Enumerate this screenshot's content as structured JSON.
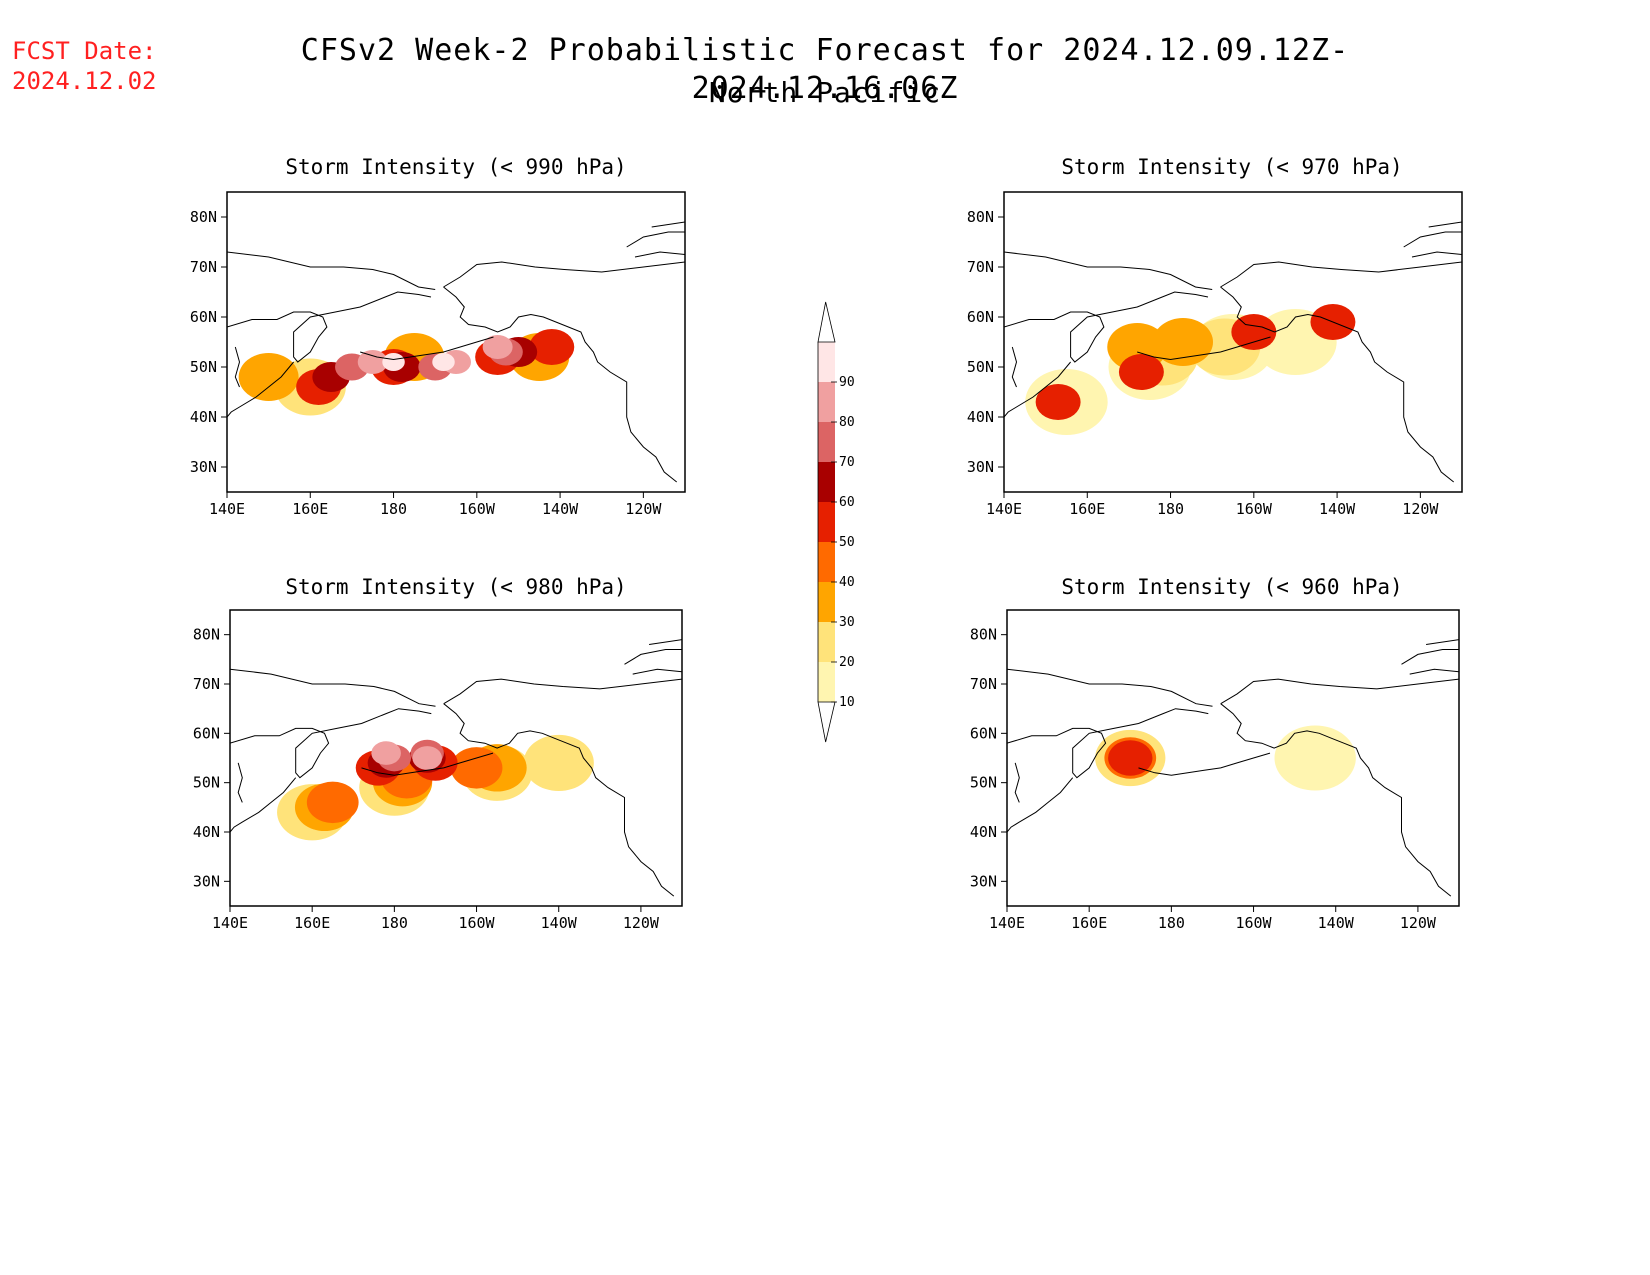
{
  "fcst": {
    "label": "FCST Date:",
    "date": "2024.12.02"
  },
  "title": "CFSv2 Week-2 Probabilistic Forecast for 2024.12.09.12Z-2024.12.16.06Z",
  "subtitle": "North Pacific",
  "colors": {
    "10": "#fff5b0",
    "20": "#ffe37a",
    "30": "#ffa500",
    "40": "#ff6a00",
    "50": "#e62000",
    "60": "#a80000",
    "70": "#dc6464",
    "80": "#f0a0a0",
    "90": "#ffe6e6"
  },
  "colorbar": {
    "levels": [
      "10",
      "20",
      "30",
      "40",
      "50",
      "60",
      "70",
      "80",
      "90"
    ]
  },
  "axes": {
    "x_ticks": [
      "140E",
      "160E",
      "180",
      "160W",
      "140W",
      "120W"
    ],
    "y_ticks": [
      "80N",
      "70N",
      "60N",
      "50N",
      "40N",
      "30N"
    ]
  },
  "panels": [
    {
      "id": "p990",
      "title": "Storm Intensity (< 990 hPa)",
      "blobs": [
        {
          "lon": 160,
          "lat": 46,
          "level": 20
        },
        {
          "lon": 150,
          "lat": 48,
          "level": 30
        },
        {
          "lon": 185,
          "lat": 52,
          "level": 30
        },
        {
          "lon": 215,
          "lat": 52,
          "level": 30
        },
        {
          "lon": 162,
          "lat": 46,
          "level": 50
        },
        {
          "lon": 180,
          "lat": 50,
          "level": 50
        },
        {
          "lon": 205,
          "lat": 52,
          "level": 50
        },
        {
          "lon": 218,
          "lat": 54,
          "level": 50
        },
        {
          "lon": 165,
          "lat": 48,
          "level": 60
        },
        {
          "lon": 182,
          "lat": 50,
          "level": 60
        },
        {
          "lon": 210,
          "lat": 53,
          "level": 60
        },
        {
          "lon": 170,
          "lat": 50,
          "level": 70
        },
        {
          "lon": 190,
          "lat": 50,
          "level": 70
        },
        {
          "lon": 207,
          "lat": 53,
          "level": 70
        },
        {
          "lon": 175,
          "lat": 51,
          "level": 80
        },
        {
          "lon": 195,
          "lat": 51,
          "level": 80
        },
        {
          "lon": 205,
          "lat": 54,
          "level": 80
        },
        {
          "lon": 180,
          "lat": 51,
          "level": 90
        },
        {
          "lon": 192,
          "lat": 51,
          "level": 90
        }
      ]
    },
    {
      "id": "p970",
      "title": "Storm Intensity (< 970 hPa)",
      "blobs": [
        {
          "lon": 155,
          "lat": 43,
          "level": 10
        },
        {
          "lon": 175,
          "lat": 50,
          "level": 10
        },
        {
          "lon": 195,
          "lat": 54,
          "level": 10
        },
        {
          "lon": 210,
          "lat": 55,
          "level": 10
        },
        {
          "lon": 178,
          "lat": 52,
          "level": 20
        },
        {
          "lon": 193,
          "lat": 54,
          "level": 20
        },
        {
          "lon": 172,
          "lat": 54,
          "level": 30
        },
        {
          "lon": 183,
          "lat": 55,
          "level": 30
        },
        {
          "lon": 153,
          "lat": 43,
          "level": 50
        },
        {
          "lon": 173,
          "lat": 49,
          "level": 50
        },
        {
          "lon": 200,
          "lat": 57,
          "level": 50
        },
        {
          "lon": 219,
          "lat": 59,
          "level": 50
        }
      ]
    },
    {
      "id": "p980",
      "title": "Storm Intensity (< 980 hPa)",
      "blobs": [
        {
          "lon": 160,
          "lat": 44,
          "level": 20
        },
        {
          "lon": 180,
          "lat": 49,
          "level": 20
        },
        {
          "lon": 205,
          "lat": 52,
          "level": 20
        },
        {
          "lon": 220,
          "lat": 54,
          "level": 20
        },
        {
          "lon": 163,
          "lat": 45,
          "level": 30
        },
        {
          "lon": 182,
          "lat": 50,
          "level": 30
        },
        {
          "lon": 205,
          "lat": 53,
          "level": 30
        },
        {
          "lon": 165,
          "lat": 46,
          "level": 40
        },
        {
          "lon": 183,
          "lat": 51,
          "level": 40
        },
        {
          "lon": 200,
          "lat": 53,
          "level": 40
        },
        {
          "lon": 176,
          "lat": 53,
          "level": 50
        },
        {
          "lon": 190,
          "lat": 54,
          "level": 50
        },
        {
          "lon": 178,
          "lat": 54,
          "level": 60
        },
        {
          "lon": 188,
          "lat": 55,
          "level": 60
        },
        {
          "lon": 180,
          "lat": 55,
          "level": 70
        },
        {
          "lon": 188,
          "lat": 56,
          "level": 70
        },
        {
          "lon": 178,
          "lat": 56,
          "level": 80
        },
        {
          "lon": 188,
          "lat": 55,
          "level": 80
        }
      ]
    },
    {
      "id": "p960",
      "title": "Storm Intensity (< 960 hPa)",
      "blobs": [
        {
          "lon": 170,
          "lat": 55,
          "level": 20
        },
        {
          "lon": 170,
          "lat": 55,
          "level": 40
        },
        {
          "lon": 170,
          "lat": 55,
          "level": 50
        },
        {
          "lon": 215,
          "lat": 55,
          "level": 10
        }
      ]
    }
  ]
}
